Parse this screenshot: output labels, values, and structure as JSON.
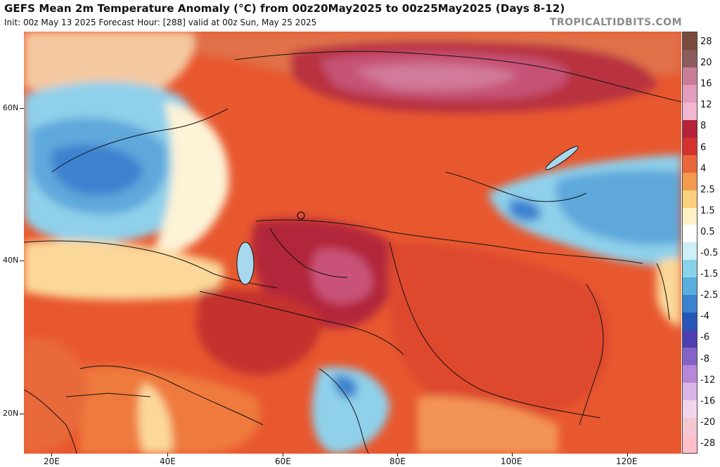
{
  "header": {
    "title": "GEFS Mean 2m Temperature Anomaly (°C) from 00z20May2025 to 00z25May2025 (Days 8-12)",
    "subtitle": "Init: 00z May 13 2025   Forecast Hour: [288]   valid at 00z Sun, May 25 2025",
    "brand": "TROPICALTIDBITS.COM"
  },
  "axes": {
    "lat_labels": [
      "60N",
      "40N",
      "20N"
    ],
    "lon_labels": [
      "20E",
      "40E",
      "60E",
      "80E",
      "100E",
      "120E"
    ]
  },
  "colorbar": {
    "labels": [
      "28",
      "20",
      "16",
      "12",
      "8",
      "6",
      "4",
      "2.5",
      "1.5",
      "0.5",
      "-0.5",
      "-1.5",
      "-2.5",
      "-4",
      "-6",
      "-8",
      "-12",
      "-16",
      "-20",
      "-28"
    ],
    "colors": [
      "#7a4a3a",
      "#8c5b5b",
      "#c97d97",
      "#e39cbc",
      "#f2b6d2",
      "#b4233a",
      "#d5322f",
      "#e9663a",
      "#f49a4f",
      "#fbd07a",
      "#fdf1c6",
      "#ffffff",
      "#cdeff5",
      "#89d3e8",
      "#58aede",
      "#3b82d0",
      "#2456b8",
      "#4c3fb0",
      "#8463c7",
      "#b488d6",
      "#d8b4e6",
      "#f1d5ee",
      "#f3c8d2",
      "#ffc0c8"
    ]
  }
}
